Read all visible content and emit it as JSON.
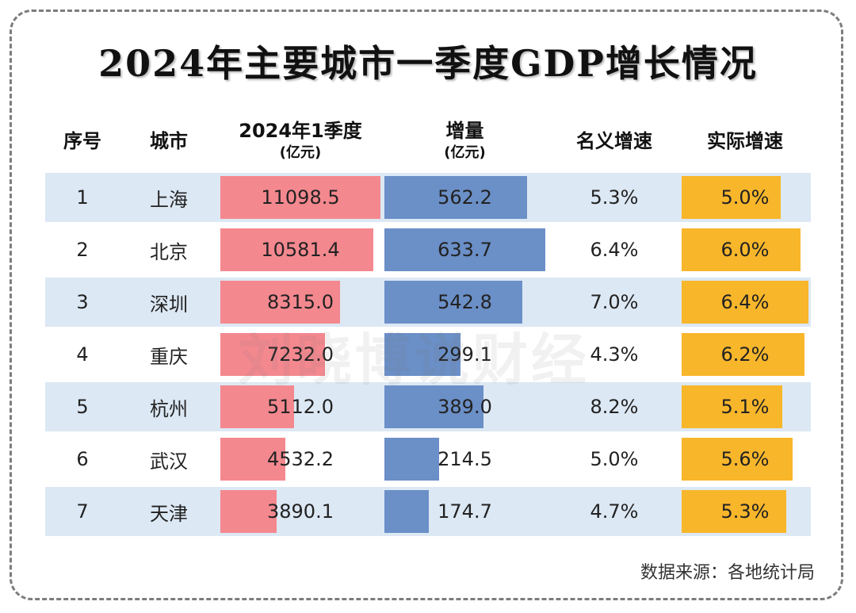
{
  "title": "2024年主要城市一季度GDP增长情况",
  "headers": {
    "index": "序号",
    "city": "城市",
    "gdp_line1": "2024年1季度",
    "gdp_line2": "(亿元)",
    "increment_line1": "增量",
    "increment_line2": "(亿元)",
    "nominal": "名义增速",
    "real": "实际增速"
  },
  "watermark": "刘晓博说财经",
  "source": "数据来源：各地统计局",
  "colors": {
    "gdp_bar": "#f4888f",
    "increment_bar": "#6b8fc7",
    "real_bar": "#f8b62b",
    "stripe": "#dce8f4"
  },
  "chart_data": {
    "type": "table",
    "title": "2024年主要城市一季度GDP增长情况",
    "columns": [
      "序号",
      "城市",
      "2024年1季度(亿元)",
      "增量(亿元)",
      "名义增速",
      "实际增速"
    ],
    "rows": [
      {
        "index": "1",
        "city": "上海",
        "gdp": 11098.5,
        "gdp_text": "11098.5",
        "increment": 562.2,
        "increment_text": "562.2",
        "nominal": "5.3%",
        "real": 5.0,
        "real_text": "5.0%"
      },
      {
        "index": "2",
        "city": "北京",
        "gdp": 10581.4,
        "gdp_text": "10581.4",
        "increment": 633.7,
        "increment_text": "633.7",
        "nominal": "6.4%",
        "real": 6.0,
        "real_text": "6.0%"
      },
      {
        "index": "3",
        "city": "深圳",
        "gdp": 8315.0,
        "gdp_text": "8315.0",
        "increment": 542.8,
        "increment_text": "542.8",
        "nominal": "7.0%",
        "real": 6.4,
        "real_text": "6.4%"
      },
      {
        "index": "4",
        "city": "重庆",
        "gdp": 7232.0,
        "gdp_text": "7232.0",
        "increment": 299.1,
        "increment_text": "299.1",
        "nominal": "4.3%",
        "real": 6.2,
        "real_text": "6.2%"
      },
      {
        "index": "5",
        "city": "杭州",
        "gdp": 5112.0,
        "gdp_text": "5112.0",
        "increment": 389.0,
        "increment_text": "389.0",
        "nominal": "8.2%",
        "real": 5.1,
        "real_text": "5.1%"
      },
      {
        "index": "6",
        "city": "武汉",
        "gdp": 4532.2,
        "gdp_text": "4532.2",
        "increment": 214.5,
        "increment_text": "214.5",
        "nominal": "5.0%",
        "real": 5.6,
        "real_text": "5.6%"
      },
      {
        "index": "7",
        "city": "天津",
        "gdp": 3890.1,
        "gdp_text": "3890.1",
        "increment": 174.7,
        "increment_text": "174.7",
        "nominal": "4.7%",
        "real": 5.3,
        "real_text": "5.3%"
      }
    ],
    "scales": {
      "gdp_max": 11098.5,
      "increment_max": 633.7,
      "real_max": 6.4
    }
  }
}
